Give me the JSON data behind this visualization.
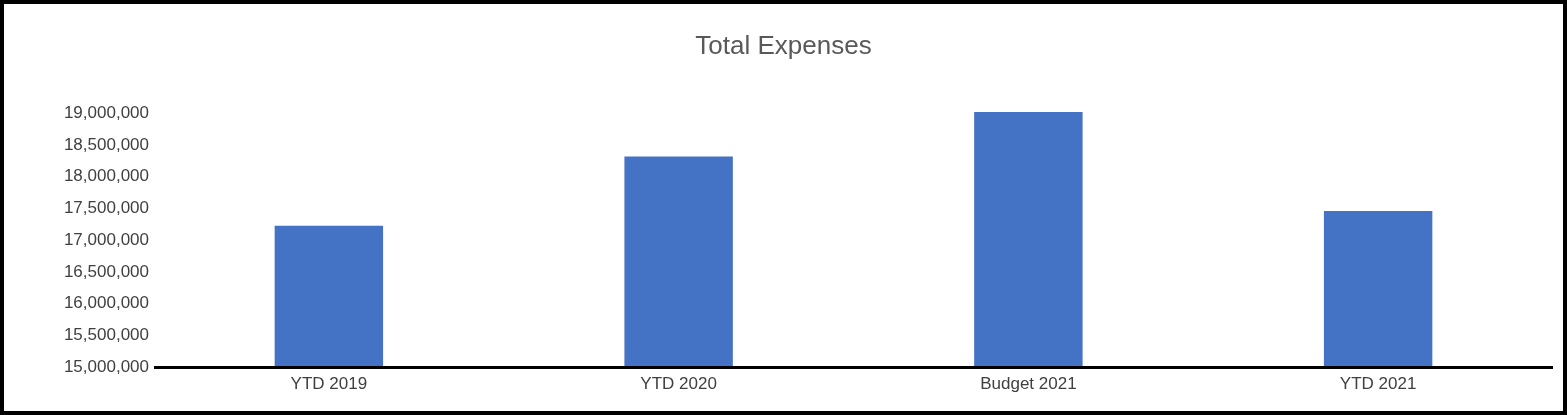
{
  "chart_data": {
    "type": "bar",
    "title": "Total Expenses",
    "categories": [
      "YTD 2019",
      "YTD 2020",
      "Budget 2021",
      "YTD 2021"
    ],
    "values": [
      17210000,
      18300000,
      19000000,
      17440000
    ],
    "color": "#4472c4",
    "ylim": [
      15000000,
      19000000
    ],
    "yticks": [
      {
        "value": 15000000,
        "label": "15,000,000"
      },
      {
        "value": 15500000,
        "label": "15,500,000"
      },
      {
        "value": 16000000,
        "label": "16,000,000"
      },
      {
        "value": 16500000,
        "label": "16,500,000"
      },
      {
        "value": 17000000,
        "label": "17,000,000"
      },
      {
        "value": 17500000,
        "label": "17,500,000"
      },
      {
        "value": 18000000,
        "label": "18,000,000"
      },
      {
        "value": 18500000,
        "label": "18,500,000"
      },
      {
        "value": 19000000,
        "label": "19,000,000"
      }
    ],
    "grid": false,
    "legend": false
  }
}
